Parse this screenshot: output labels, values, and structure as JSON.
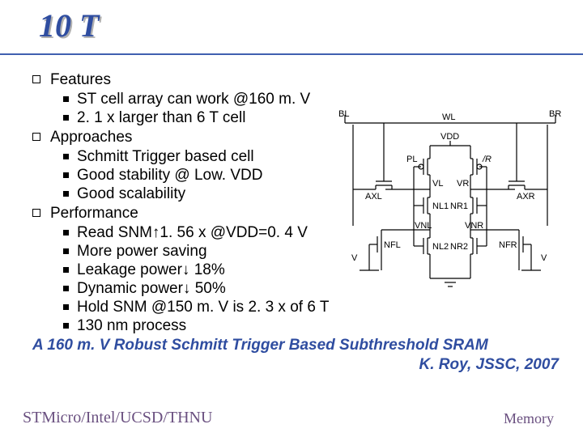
{
  "colors": {
    "title": "#2f4da0",
    "title_shadow": "#b0b0b0",
    "accent_border": "#4060b0",
    "citation": "#2f4da0",
    "footer": "#6a5080",
    "text": "#000000"
  },
  "title": "10 T",
  "sections": [
    {
      "label": "Features",
      "items": [
        "ST cell array can work @160 m. V",
        "2. 1 x larger than 6 T cell"
      ]
    },
    {
      "label": "Approaches",
      "items": [
        "Schmitt Trigger based cell",
        "Good stability @ Low. VDD",
        "Good scalability"
      ]
    },
    {
      "label": "Performance",
      "items": [
        "Read SNM↑1. 56 x @VDD=0. 4 V",
        "More power saving",
        "Leakage power↓ 18%",
        "Dynamic power↓ 50%",
        "Hold SNM @150 m. V is 2. 3 x of 6 T",
        "130 nm process"
      ]
    }
  ],
  "citation": {
    "line1": "A 160 m. V Robust Schmitt Trigger Based Subthreshold SRAM",
    "line2": "K. Roy, JSSC, 2007"
  },
  "footer": {
    "left": "STMicro/Intel/UCSD/THNU",
    "right": "Memory"
  },
  "diagram": {
    "labels": {
      "BL": "BL",
      "WL": "WL",
      "BR": "BR",
      "VDD": "VDD",
      "PL": "PL",
      "VL": "VL",
      "VR": "VR",
      "PR": "PR",
      "AXL": "AXL",
      "AXR": "AXR",
      "NL1": "NL1",
      "NR1": "NR1",
      "VNL": "VNL",
      "VNR": "VNR",
      "NFL": "NFL",
      "NFR": "NFR",
      "NL2": "NL2",
      "NR2": "NR2",
      "VSS": "V_SS",
      "VSSR": "V_SS"
    }
  }
}
